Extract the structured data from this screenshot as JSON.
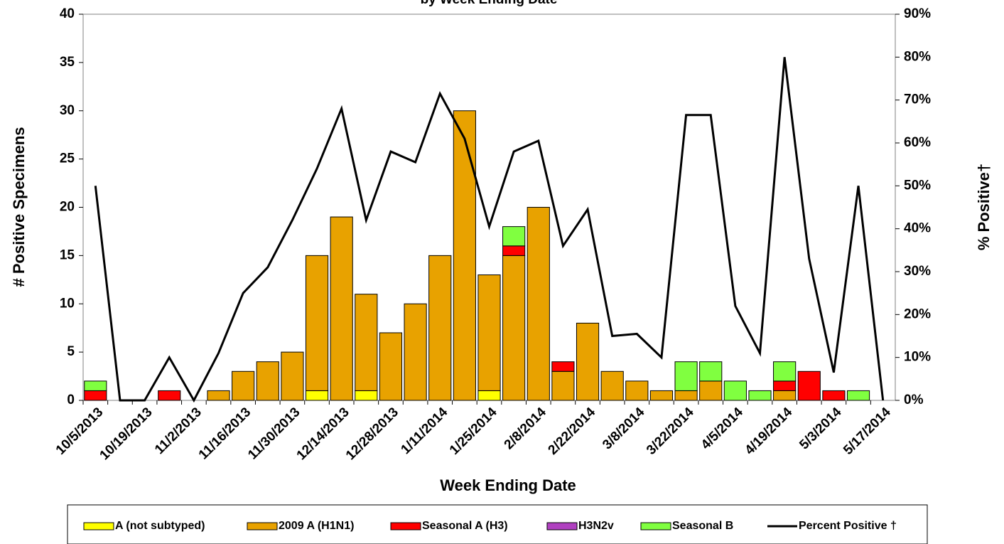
{
  "chart_data": {
    "type": "bar",
    "stacked": true,
    "title": "by Week Ending Date",
    "x_label": "Week Ending Date",
    "y_label": "# Positive Specimens",
    "y2_label": "% Positive†",
    "categories": [
      "10/5/2013",
      null,
      "10/19/2013",
      null,
      "11/2/2013",
      null,
      "11/16/2013",
      null,
      "11/30/2013",
      null,
      "12/14/2013",
      null,
      "12/28/2013",
      null,
      "1/11/2014",
      null,
      "1/25/2014",
      null,
      "2/8/2014",
      null,
      "2/22/2014",
      null,
      "3/8/2014",
      null,
      "3/22/2014",
      null,
      "4/5/2014",
      null,
      "4/19/2014",
      null,
      "5/3/2014",
      null,
      "5/17/2014"
    ],
    "series": [
      {
        "name": "A (not subtyped)",
        "color": "#ffff00",
        "values": [
          0,
          0,
          0,
          0,
          0,
          0,
          0,
          0,
          0,
          1,
          0,
          1,
          0,
          0,
          0,
          0,
          1,
          0,
          0,
          0,
          0,
          0,
          0,
          0,
          0,
          0,
          0,
          0,
          0,
          0,
          0,
          0,
          0
        ]
      },
      {
        "name": "2009 A (H1N1)",
        "color": "#e8a200",
        "values": [
          0,
          0,
          0,
          0,
          0,
          1,
          3,
          4,
          5,
          14,
          19,
          10,
          7,
          10,
          15,
          30,
          12,
          15,
          20,
          3,
          8,
          3,
          2,
          1,
          1,
          2,
          0,
          0,
          1,
          0,
          0,
          0,
          0
        ]
      },
      {
        "name": "Seasonal A (H3)",
        "color": "#ff0000",
        "values": [
          1,
          0,
          0,
          1,
          0,
          0,
          0,
          0,
          0,
          0,
          0,
          0,
          0,
          0,
          0,
          0,
          0,
          1,
          0,
          1,
          0,
          0,
          0,
          0,
          0,
          0,
          0,
          0,
          1,
          3,
          1,
          0,
          0
        ]
      },
      {
        "name": "H3N2v",
        "color": "#b040c0",
        "values": [
          0,
          0,
          0,
          0,
          0,
          0,
          0,
          0,
          0,
          0,
          0,
          0,
          0,
          0,
          0,
          0,
          0,
          0,
          0,
          0,
          0,
          0,
          0,
          0,
          0,
          0,
          0,
          0,
          0,
          0,
          0,
          0,
          0
        ]
      },
      {
        "name": "Seasonal B",
        "color": "#80ff40",
        "values": [
          1,
          0,
          0,
          0,
          0,
          0,
          0,
          0,
          0,
          0,
          0,
          0,
          0,
          0,
          0,
          0,
          0,
          2,
          0,
          0,
          0,
          0,
          0,
          0,
          3,
          2,
          2,
          1,
          2,
          0,
          0,
          1,
          0
        ]
      },
      {
        "name": "Percent Positive †",
        "color": "#000000",
        "axis": "y2",
        "values": [
          50,
          0,
          0,
          10,
          0,
          11,
          25,
          31,
          42,
          54,
          68,
          42,
          58,
          55.5,
          71.5,
          61,
          40.5,
          58,
          60.5,
          36,
          44.5,
          15,
          15.5,
          10,
          66.5,
          66.5,
          22,
          11,
          80,
          33,
          6.5,
          50,
          0
        ]
      }
    ],
    "ylim": [
      0,
      40
    ],
    "yticks": [
      0,
      5,
      10,
      15,
      20,
      25,
      30,
      35,
      40
    ],
    "y2lim": [
      0,
      90
    ],
    "y2ticks": [
      {
        "value": 0,
        "label": "0%"
      },
      {
        "value": 10,
        "label": "10%"
      },
      {
        "value": 20,
        "label": "20%"
      },
      {
        "value": 30,
        "label": "30%"
      },
      {
        "value": 40,
        "label": "40%"
      },
      {
        "value": 50,
        "label": "50%"
      },
      {
        "value": 60,
        "label": "60%"
      },
      {
        "value": 70,
        "label": "70%"
      },
      {
        "value": 80,
        "label": "80%"
      },
      {
        "value": 90,
        "label": "90%"
      }
    ],
    "grid": false,
    "legend": "bottom"
  }
}
